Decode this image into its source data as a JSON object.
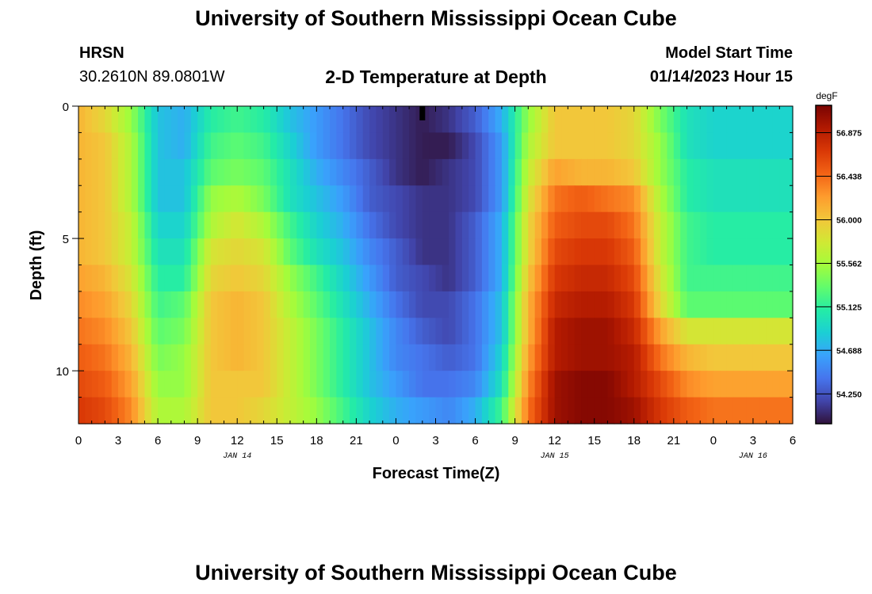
{
  "header": {
    "title": "University of Southern Mississippi Ocean Cube",
    "station": "HRSN",
    "coordinates": "30.2610N  89.0801W",
    "subtitle": "2-D Temperature at Depth",
    "model_start_label": "Model Start Time",
    "model_start_value": "01/14/2023 Hour 15"
  },
  "footer": {
    "title": "University of Southern Mississippi Ocean Cube"
  },
  "chart_data": {
    "type": "heatmap",
    "xlabel": "Forecast Time(Z)",
    "ylabel": "Depth (ft)",
    "x_range_hours": [
      0,
      54
    ],
    "x_tick_labels": [
      "0",
      "3",
      "6",
      "9",
      "12",
      "15",
      "18",
      "21",
      "0",
      "3",
      "6",
      "9",
      "12",
      "15",
      "18",
      "21",
      "0",
      "3",
      "6"
    ],
    "date_labels": [
      {
        "label": "JAN 14",
        "hour": 12
      },
      {
        "label": "JAN 15",
        "hour": 36
      },
      {
        "label": "JAN 16",
        "hour": 51
      }
    ],
    "y_range_ft": [
      0,
      12
    ],
    "y_ticks": [
      0,
      5,
      10
    ],
    "colorbar": {
      "unit": "degF",
      "ticks": [
        54.25,
        54.688,
        55.125,
        55.562,
        56.0,
        56.438,
        56.875
      ],
      "tick_labels": [
        "54.250",
        "54.688",
        "55.125",
        "55.562",
        "56.000",
        "56.438",
        "56.875"
      ],
      "range": [
        53.95,
        57.15
      ],
      "colormap": [
        "#30123b",
        "#4145ab",
        "#4675ed",
        "#39a2fc",
        "#1bcfd4",
        "#24eca6",
        "#61fc6c",
        "#a4fc3b",
        "#d1e834",
        "#f3c63a",
        "#fe9b2d",
        "#f36315",
        "#d93806",
        "#b11901",
        "#7a0402"
      ]
    },
    "grid": false,
    "legend": "colorbar-right",
    "marker_hour": 26,
    "depth_levels_ft": [
      0.5,
      1.5,
      2.5,
      3.5,
      4.5,
      5.5,
      6.5,
      7.5,
      8.5,
      9.5,
      10.5,
      11.5
    ],
    "time_hours": [
      0,
      2,
      4,
      6,
      8,
      10,
      12,
      14,
      16,
      18,
      20,
      22,
      24,
      26,
      28,
      30,
      32,
      34,
      36,
      38,
      40,
      42,
      44,
      46,
      48,
      50,
      52,
      54
    ],
    "temperature_degF": [
      [
        56.1,
        55.9,
        55.5,
        54.8,
        54.7,
        55.1,
        55.2,
        55.1,
        54.8,
        54.6,
        54.4,
        54.2,
        54.1,
        54.0,
        54.1,
        54.3,
        54.7,
        55.5,
        56.0,
        56.0,
        56.0,
        55.9,
        55.4,
        55.0,
        54.9,
        54.9,
        54.9,
        54.9
      ],
      [
        56.1,
        56.0,
        55.6,
        54.8,
        54.7,
        55.2,
        55.3,
        55.2,
        54.9,
        54.6,
        54.4,
        54.2,
        54.1,
        54.0,
        54.0,
        54.2,
        54.6,
        55.6,
        56.0,
        56.0,
        56.0,
        55.9,
        55.5,
        55.0,
        54.9,
        54.9,
        54.9,
        54.9
      ],
      [
        56.1,
        56.0,
        55.6,
        54.8,
        54.8,
        55.3,
        55.4,
        55.3,
        55.0,
        54.7,
        54.5,
        54.3,
        54.1,
        54.0,
        54.1,
        54.2,
        54.6,
        55.7,
        56.2,
        56.1,
        56.1,
        56.0,
        55.5,
        55.1,
        55.0,
        55.0,
        55.0,
        55.0
      ],
      [
        56.1,
        56.0,
        55.6,
        54.8,
        54.8,
        55.5,
        55.6,
        55.4,
        55.0,
        54.8,
        54.6,
        54.3,
        54.2,
        54.1,
        54.1,
        54.2,
        54.6,
        55.8,
        56.4,
        56.5,
        56.4,
        56.3,
        55.6,
        55.1,
        55.0,
        55.0,
        55.0,
        55.0
      ],
      [
        56.1,
        56.0,
        55.7,
        54.9,
        54.9,
        55.6,
        55.8,
        55.6,
        55.2,
        54.9,
        54.7,
        54.4,
        54.2,
        54.1,
        54.1,
        54.3,
        54.7,
        55.9,
        56.5,
        56.6,
        56.6,
        56.4,
        55.7,
        55.2,
        55.1,
        55.1,
        55.1,
        55.1
      ],
      [
        56.1,
        56.0,
        55.7,
        55.0,
        55.0,
        55.8,
        55.9,
        55.8,
        55.3,
        55.0,
        54.8,
        54.5,
        54.3,
        54.1,
        54.1,
        54.3,
        54.7,
        55.9,
        56.6,
        56.7,
        56.7,
        56.5,
        55.7,
        55.2,
        55.1,
        55.1,
        55.1,
        55.1
      ],
      [
        56.2,
        56.1,
        55.8,
        55.1,
        55.1,
        55.9,
        56.0,
        55.9,
        55.5,
        55.2,
        54.9,
        54.6,
        54.3,
        54.2,
        54.1,
        54.3,
        54.7,
        56.0,
        56.7,
        56.8,
        56.8,
        56.6,
        55.8,
        55.2,
        55.2,
        55.2,
        55.2,
        55.2
      ],
      [
        56.3,
        56.2,
        55.9,
        55.2,
        55.3,
        56.0,
        56.1,
        56.0,
        55.6,
        55.3,
        55.0,
        54.7,
        54.4,
        54.2,
        54.2,
        54.4,
        54.8,
        56.1,
        56.8,
        56.9,
        56.9,
        56.7,
        55.9,
        55.3,
        55.3,
        55.3,
        55.3,
        55.3
      ],
      [
        56.4,
        56.3,
        56.0,
        55.3,
        55.4,
        56.0,
        56.1,
        56.0,
        55.7,
        55.4,
        55.1,
        54.8,
        54.5,
        54.3,
        54.2,
        54.4,
        54.8,
        56.1,
        56.9,
        57.0,
        57.0,
        56.8,
        56.2,
        55.8,
        55.8,
        55.8,
        55.8,
        55.8
      ],
      [
        56.5,
        56.4,
        56.1,
        55.4,
        55.5,
        56.0,
        56.1,
        56.0,
        55.7,
        55.4,
        55.1,
        54.8,
        54.5,
        54.4,
        54.3,
        54.4,
        54.9,
        56.2,
        56.9,
        57.0,
        57.0,
        56.9,
        56.4,
        56.1,
        56.0,
        56.0,
        56.0,
        56.0
      ],
      [
        56.6,
        56.5,
        56.2,
        55.5,
        55.5,
        56.0,
        56.0,
        56.0,
        55.7,
        55.4,
        55.1,
        54.8,
        54.6,
        54.4,
        54.4,
        54.5,
        55.0,
        56.3,
        57.0,
        57.1,
        57.1,
        56.9,
        56.6,
        56.3,
        56.2,
        56.2,
        56.2,
        56.2
      ],
      [
        56.7,
        56.6,
        56.3,
        55.6,
        55.6,
        56.0,
        56.0,
        55.9,
        55.7,
        55.5,
        55.2,
        54.9,
        54.7,
        54.6,
        54.5,
        54.7,
        55.2,
        56.4,
        57.0,
        57.1,
        57.1,
        57.0,
        56.7,
        56.5,
        56.4,
        56.4,
        56.4,
        56.4
      ]
    ]
  }
}
